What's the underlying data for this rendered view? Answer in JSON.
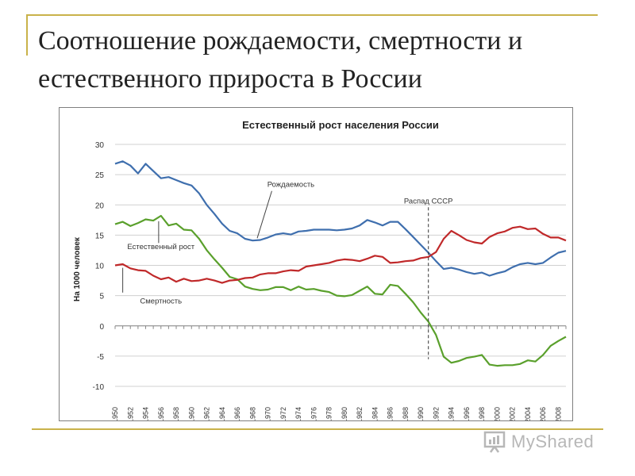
{
  "slide": {
    "title": "Соотношение рождаемости, смертности и естественного прироста в России"
  },
  "watermark": {
    "text": "MyShared"
  },
  "chart_data": {
    "type": "line",
    "title": "Естественный рост населения России",
    "ylabel": "На 1000 человек",
    "xlabel": "",
    "ylim": [
      -10,
      30
    ],
    "yticks": [
      30,
      25,
      20,
      15,
      10,
      5,
      0,
      -5,
      -10
    ],
    "xticks": [
      "1950",
      "1952",
      "1954",
      "1956",
      "1958",
      "1960",
      "1962",
      "1964",
      "1966",
      "1968",
      "1970",
      "1972",
      "1974",
      "1976",
      "1978",
      "1980",
      "1982",
      "1984",
      "1986",
      "1988",
      "1990",
      "1992",
      "1994",
      "1996",
      "1998",
      "2000",
      "2002",
      "2004",
      "2006",
      "2008"
    ],
    "x": [
      1950,
      1951,
      1952,
      1953,
      1954,
      1955,
      1956,
      1957,
      1958,
      1959,
      1960,
      1961,
      1962,
      1963,
      1964,
      1965,
      1966,
      1967,
      1968,
      1969,
      1970,
      1971,
      1972,
      1973,
      1974,
      1975,
      1976,
      1977,
      1978,
      1979,
      1980,
      1981,
      1982,
      1983,
      1984,
      1985,
      1986,
      1987,
      1988,
      1989,
      1990,
      1991,
      1992,
      1993,
      1994,
      1995,
      1996,
      1997,
      1998,
      1999,
      2000,
      2001,
      2002,
      2003,
      2004,
      2005,
      2006,
      2007,
      2008,
      2009
    ],
    "grid": true,
    "legend": "inline labels",
    "series": [
      {
        "name": "Рождаемость",
        "color": "#3f6fae",
        "values": [
          26.8,
          27.2,
          26.5,
          25.2,
          26.8,
          25.6,
          24.4,
          24.6,
          24.1,
          23.6,
          23.2,
          21.9,
          20.0,
          18.5,
          16.9,
          15.7,
          15.3,
          14.4,
          14.1,
          14.2,
          14.6,
          15.1,
          15.3,
          15.1,
          15.6,
          15.7,
          15.9,
          15.9,
          15.9,
          15.8,
          15.9,
          16.1,
          16.6,
          17.5,
          17.1,
          16.6,
          17.2,
          17.2,
          16.0,
          14.7,
          13.4,
          12.1,
          10.7,
          9.4,
          9.6,
          9.3,
          8.9,
          8.6,
          8.8,
          8.3,
          8.7,
          9.0,
          9.7,
          10.2,
          10.4,
          10.2,
          10.4,
          11.3,
          12.1,
          12.4
        ]
      },
      {
        "name": "Естественный рост",
        "color": "#5aa02c",
        "values": [
          16.8,
          17.2,
          16.5,
          17.0,
          17.6,
          17.4,
          18.2,
          16.6,
          16.9,
          15.9,
          15.8,
          14.4,
          12.5,
          11.0,
          9.6,
          8.1,
          7.7,
          6.5,
          6.1,
          5.9,
          6.0,
          6.4,
          6.4,
          5.9,
          6.5,
          6.0,
          6.1,
          5.8,
          5.6,
          5.0,
          4.9,
          5.1,
          5.8,
          6.5,
          5.3,
          5.2,
          6.8,
          6.6,
          5.3,
          3.9,
          2.2,
          0.7,
          -1.5,
          -5.1,
          -6.1,
          -5.8,
          -5.3,
          -5.1,
          -4.8,
          -6.4,
          -6.6,
          -6.5,
          -6.5,
          -6.3,
          -5.7,
          -5.9,
          -4.8,
          -3.3,
          -2.5,
          -1.8
        ]
      },
      {
        "name": "Смертность",
        "color": "#c0292a",
        "values": [
          10.0,
          10.2,
          9.5,
          9.2,
          9.1,
          8.3,
          7.7,
          8.0,
          7.3,
          7.8,
          7.4,
          7.5,
          7.8,
          7.5,
          7.1,
          7.5,
          7.6,
          7.9,
          8.0,
          8.5,
          8.7,
          8.7,
          9.0,
          9.2,
          9.1,
          9.8,
          10.0,
          10.2,
          10.4,
          10.8,
          11.0,
          10.9,
          10.7,
          11.1,
          11.6,
          11.4,
          10.4,
          10.5,
          10.7,
          10.8,
          11.2,
          11.4,
          12.2,
          14.4,
          15.7,
          15.0,
          14.2,
          13.8,
          13.6,
          14.7,
          15.3,
          15.6,
          16.2,
          16.4,
          16.0,
          16.1,
          15.2,
          14.6,
          14.6,
          14.1
        ]
      }
    ],
    "annotations": [
      {
        "text": "Рождаемость",
        "year": 1973,
        "value": 23
      },
      {
        "text": "Естественный рост",
        "year": 1956,
        "value": 12.7
      },
      {
        "text": "Смертность",
        "year": 1956,
        "value": 3.7
      },
      {
        "text": "Распад СССР",
        "year": 1991,
        "value": 20.2,
        "vline_to": -5.5
      }
    ]
  }
}
